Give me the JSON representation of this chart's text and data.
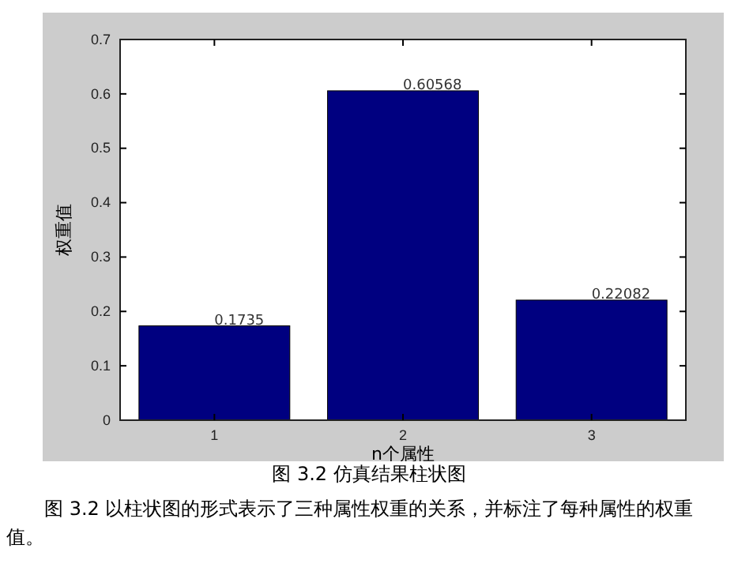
{
  "chart_data": {
    "type": "bar",
    "xlabel": "n个属性",
    "ylabel": "权重值",
    "categories": [
      "1",
      "2",
      "3"
    ],
    "values": [
      0.1735,
      0.60568,
      0.22082
    ],
    "color": "#000080",
    "ylim": [
      0,
      0.7
    ],
    "yticks": [
      0,
      0.1,
      0.2,
      0.3,
      0.4,
      0.5,
      0.6,
      0.7
    ],
    "grid": false,
    "data_labels": true,
    "annotations": [
      "图 3.2  仿真结果柱状图",
      "图 3.2 以柱状图的形式表示了三种属性权重的关系，并标注了每种属性的权重值。"
    ]
  }
}
